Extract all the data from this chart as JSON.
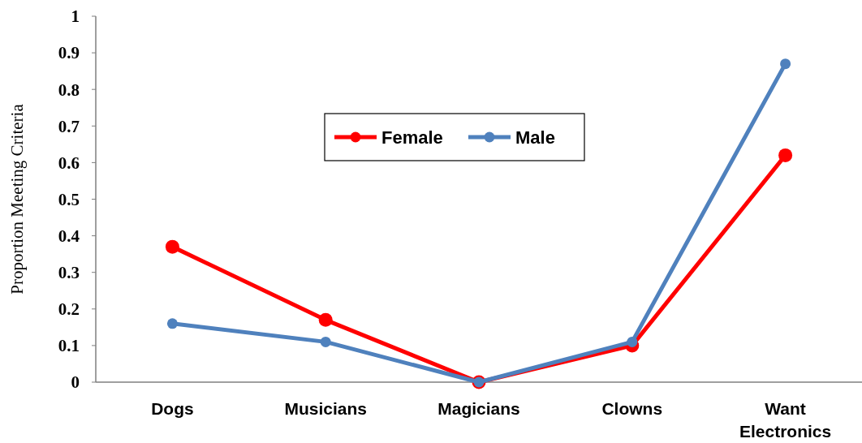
{
  "chart_data": {
    "type": "line",
    "ylabel": "Proportion Meeting Criteria",
    "categories": [
      "Dogs",
      "Musicians",
      "Magicians",
      "Clowns",
      "Want Electronics"
    ],
    "series": [
      {
        "name": "Female",
        "color": "#ff0000",
        "values": [
          0.37,
          0.17,
          0,
          0.1,
          0.62
        ]
      },
      {
        "name": "Male",
        "color": "#4f81bd",
        "values": [
          0.16,
          0.11,
          0,
          0.11,
          0.87
        ]
      }
    ],
    "ylim": [
      0,
      1
    ],
    "yticks": [
      0,
      0.1,
      0.2,
      0.3,
      0.4,
      0.5,
      0.6,
      0.7,
      0.8,
      0.9,
      1
    ],
    "marker": "circle",
    "line_style": "solid",
    "legend": "top",
    "grid": false
  }
}
